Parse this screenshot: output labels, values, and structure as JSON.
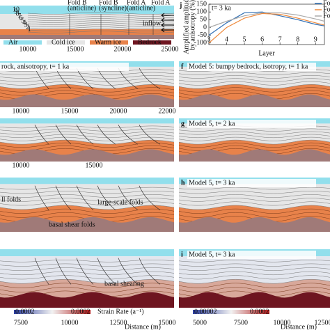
{
  "top_panel": {
    "fold_labels": [
      [
        "Fold B",
        "(anticline)"
      ],
      [
        "Fold B",
        "(syncline)"
      ],
      [
        "Fold A",
        "(anticline)"
      ],
      [
        "Fold A"
      ]
    ],
    "inflow": "inflow",
    "legend": [
      "Air",
      "Cold ice",
      "Warm ice",
      "Bedrock"
    ],
    "layers": [
      "10",
      "9",
      "8",
      "7",
      "6",
      "5",
      "4",
      "3",
      "2",
      "1"
    ],
    "xticks": [
      "10000",
      "15000",
      "20000",
      "25000"
    ]
  },
  "panel_j": {
    "letter": "j",
    "title": "t= 3 ka",
    "y_label": [
      "Amplified amplitude",
      "by anisotropy (%)"
    ],
    "x_label": "Layer",
    "xlim": [
      3,
      9.5
    ],
    "ylim": [
      -110,
      150
    ],
    "xticks": [
      3,
      4,
      5,
      6,
      7,
      8,
      9
    ],
    "yticks": [
      150,
      100,
      50,
      0,
      -50,
      -100
    ],
    "layers": [
      3,
      4,
      5,
      6,
      7,
      8,
      9,
      9.5
    ],
    "series": [
      {
        "name": "Fo",
        "color": "#2f6fb5",
        "values": [
          -50,
          30,
          95,
          100,
          75,
          50,
          20,
          10
        ]
      },
      {
        "name": "Fo",
        "color": "#ef8a3c",
        "values": [
          -100,
          0,
          60,
          90,
          85,
          60,
          30,
          15
        ]
      },
      {
        "name": "Fo",
        "color": "#aaaaaa",
        "values": [
          0,
          40,
          75,
          95,
          95,
          80,
          55,
          40
        ]
      }
    ]
  },
  "panels": [
    {
      "title": "rock, anisotropy, t= 1 ka",
      "xticks": [
        "10000",
        "15000",
        "20000",
        "22000"
      ]
    },
    {
      "letter": "f",
      "title": "Model 5: bumpy bedrock, isotropy, t= 1 ka"
    },
    {
      "xticks": [
        "10000",
        "15000"
      ]
    },
    {
      "letter": "g",
      "title": "Model 5, t= 2 ka"
    },
    {
      "annotations": [
        "ll folds",
        "large-scale folds",
        "basal shear folds"
      ]
    },
    {
      "letter": "h",
      "title": "Model 5, t= 3 ka"
    },
    {
      "annotations": [
        "basal shearing"
      ],
      "colorbar": [
        "0.0002",
        "0.0002",
        "Strain Rate (a⁻¹)"
      ],
      "xticks": [
        "7500",
        "10000",
        "12500",
        "15000"
      ],
      "x_label": "Distance (m)"
    },
    {
      "letter": "i",
      "title": "Model 5, t= 3 ka",
      "colorbar": [
        "0.00002",
        "0.0002"
      ],
      "xticks": [
        "5000",
        "7500",
        "10000",
        "12500"
      ],
      "x_label": "Distance (m)"
    }
  ]
}
